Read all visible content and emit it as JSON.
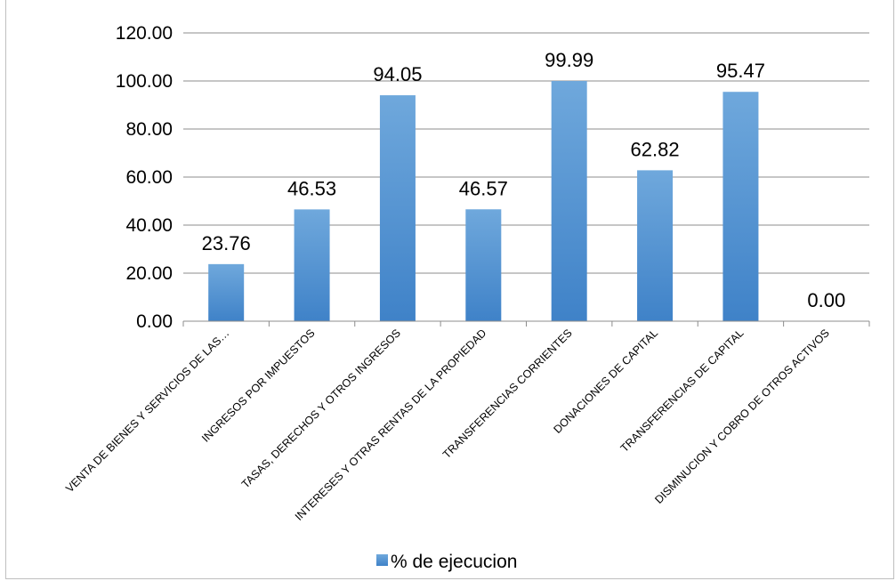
{
  "chart_data": {
    "type": "bar",
    "categories": [
      "VENTA DE BIENES Y SERVICIOS DE LAS…",
      "INGRESOS POR IMPUESTOS",
      "TASAS, DERECHOS Y OTROS INGRESOS",
      "INTERESES Y OTRAS RENTAS DE LA PROPIEDAD",
      "TRANSFERENCIAS CORRIENTES",
      "DONACIONES DE CAPITAL",
      "TRANSFERENCIAS DE CAPITAL",
      "DISMINUCION Y COBRO DE OTROS ACTIVOS"
    ],
    "series": [
      {
        "name": "% de ejecucion",
        "values": [
          23.76,
          46.53,
          94.05,
          46.57,
          99.99,
          62.82,
          95.47,
          0.0
        ],
        "data_labels": [
          "23.76",
          "46.53",
          "94.05",
          "46.57",
          "99.99",
          "62.82",
          "95.47",
          "0.00"
        ]
      }
    ],
    "ylim": [
      0,
      120
    ],
    "yticks": [
      "0.00",
      "20.00",
      "40.00",
      "60.00",
      "80.00",
      "100.00",
      "120.00"
    ],
    "grid": true,
    "legend_position": "bottom",
    "bar_color": "#5b9bd5",
    "bar_color_dark": "#3f7fc4",
    "grid_color": "#8c8c8c"
  }
}
